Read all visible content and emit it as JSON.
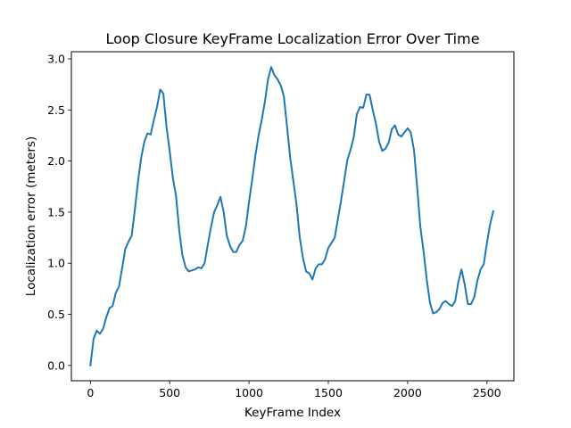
{
  "chart_data": {
    "type": "line",
    "title": "Loop Closure KeyFrame Localization Error Over Time",
    "xlabel": "KeyFrame Index",
    "ylabel": "Localization error (meters)",
    "xlim": [
      -120,
      2670
    ],
    "ylim": [
      -0.15,
      3.07
    ],
    "xticks": [
      0,
      500,
      1000,
      1500,
      2000,
      2500
    ],
    "yticks": [
      0.0,
      0.5,
      1.0,
      1.5,
      2.0,
      2.5,
      3.0
    ],
    "xtick_labels": [
      "0",
      "500",
      "1000",
      "1500",
      "2000",
      "2500"
    ],
    "ytick_labels": [
      "0.0",
      "0.5",
      "1.0",
      "1.5",
      "2.0",
      "2.5",
      "3.0"
    ],
    "grid": false,
    "legend": "none",
    "line_color": "#1f77b4",
    "series": [
      {
        "x": [
          0,
          20,
          40,
          60,
          80,
          100,
          120,
          140,
          160,
          180,
          200,
          220,
          240,
          260,
          280,
          300,
          320,
          340,
          360,
          380,
          400,
          420,
          440,
          460,
          480,
          500,
          520,
          540,
          560,
          580,
          600,
          620,
          640,
          660,
          680,
          700,
          720,
          740,
          760,
          780,
          800,
          820,
          840,
          860,
          880,
          900,
          920,
          940,
          960,
          980,
          1000,
          1020,
          1040,
          1060,
          1080,
          1100,
          1120,
          1140,
          1160,
          1180,
          1200,
          1220,
          1240,
          1260,
          1280,
          1300,
          1320,
          1340,
          1360,
          1380,
          1400,
          1420,
          1440,
          1460,
          1480,
          1500,
          1520,
          1540,
          1560,
          1580,
          1600,
          1620,
          1640,
          1660,
          1680,
          1700,
          1720,
          1740,
          1760,
          1780,
          1800,
          1820,
          1840,
          1860,
          1880,
          1900,
          1920,
          1940,
          1960,
          1980,
          2000,
          2020,
          2040,
          2060,
          2080,
          2100,
          2120,
          2140,
          2160,
          2180,
          2200,
          2220,
          2240,
          2260,
          2280,
          2300,
          2320,
          2340,
          2360,
          2380,
          2400,
          2420,
          2440,
          2460,
          2480,
          2500,
          2520,
          2540
        ],
        "y": [
          0.0,
          0.26,
          0.34,
          0.31,
          0.36,
          0.47,
          0.56,
          0.58,
          0.71,
          0.77,
          0.95,
          1.14,
          1.21,
          1.27,
          1.52,
          1.8,
          2.03,
          2.19,
          2.27,
          2.26,
          2.4,
          2.53,
          2.7,
          2.66,
          2.33,
          2.1,
          1.83,
          1.66,
          1.32,
          1.08,
          0.96,
          0.92,
          0.93,
          0.94,
          0.96,
          0.95,
          1.0,
          1.18,
          1.35,
          1.5,
          1.57,
          1.65,
          1.5,
          1.27,
          1.17,
          1.11,
          1.11,
          1.18,
          1.22,
          1.36,
          1.6,
          1.82,
          2.05,
          2.25,
          2.4,
          2.58,
          2.8,
          2.92,
          2.84,
          2.8,
          2.74,
          2.63,
          2.33,
          2.03,
          1.8,
          1.57,
          1.25,
          1.05,
          0.92,
          0.9,
          0.84,
          0.95,
          0.99,
          0.99,
          1.04,
          1.15,
          1.2,
          1.25,
          1.43,
          1.61,
          1.81,
          2.01,
          2.11,
          2.23,
          2.46,
          2.53,
          2.52,
          2.65,
          2.65,
          2.5,
          2.37,
          2.19,
          2.1,
          2.12,
          2.18,
          2.31,
          2.35,
          2.26,
          2.24,
          2.28,
          2.32,
          2.28,
          2.11,
          1.74,
          1.36,
          1.12,
          0.85,
          0.62,
          0.51,
          0.52,
          0.55,
          0.61,
          0.63,
          0.6,
          0.58,
          0.63,
          0.82,
          0.94,
          0.79,
          0.6,
          0.6,
          0.67,
          0.83,
          0.94,
          0.99,
          1.2,
          1.38,
          1.51
        ]
      }
    ]
  }
}
